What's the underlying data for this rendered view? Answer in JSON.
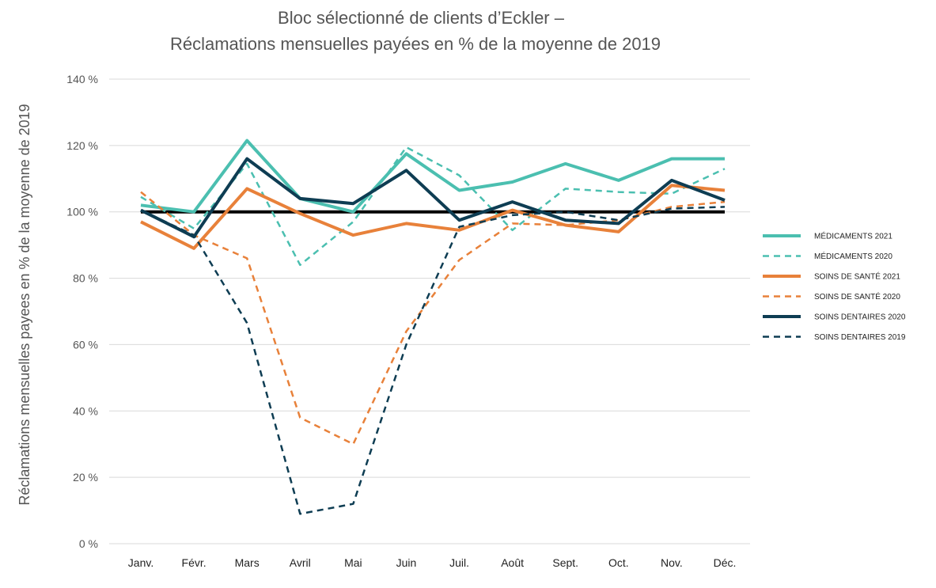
{
  "chart_data": {
    "type": "line",
    "title": [
      "Bloc sélectionné de clients d’Eckler –",
      "Réclamations mensuelles payées en % de la moyenne de 2019"
    ],
    "ylabel": "Réclamations mensuelles payees en % de la moyenne de 2019",
    "xlabel": "",
    "categories": [
      "Janv.",
      "Févr.",
      "Mars",
      "Avril",
      "Mai",
      "Juin",
      "Juil.",
      "Août",
      "Sept.",
      "Oct.",
      "Nov.",
      "Déc."
    ],
    "ylim": [
      0,
      140
    ],
    "yticks": [
      0,
      20,
      40,
      60,
      80,
      100,
      120,
      140
    ],
    "ytick_labels": [
      "0 %",
      "20 %",
      "40 %",
      "60 %",
      "80 %",
      "100 %",
      "120 %",
      "140 %"
    ],
    "grid": true,
    "legend_position": "right",
    "baseline": {
      "value": 100,
      "color": "#000000"
    },
    "series": [
      {
        "name": "MÉDICAMENTS 2021",
        "color": "#4bbfb0",
        "dashed": false,
        "values": [
          102,
          100,
          121.5,
          104,
          100,
          117.5,
          106.5,
          109,
          114.5,
          109.5,
          116,
          116
        ]
      },
      {
        "name": "MÉDICAMENTS 2020",
        "color": "#4bbfb0",
        "dashed": true,
        "values": [
          104.5,
          95,
          114.5,
          84,
          97,
          119.5,
          111,
          94.5,
          107,
          106,
          105.5,
          113
        ]
      },
      {
        "name": "SOINS DE SANTÉ 2021",
        "color": "#e8813a",
        "dashed": false,
        "values": [
          97,
          89,
          107,
          99.5,
          93,
          96.5,
          94.5,
          100.5,
          96,
          94,
          108,
          106.5
        ]
      },
      {
        "name": "SOINS DE SANTÉ 2020",
        "color": "#e8813a",
        "dashed": true,
        "values": [
          106,
          93,
          86,
          38,
          30,
          64,
          85.5,
          96.5,
          96,
          97.5,
          101.5,
          103
        ]
      },
      {
        "name": "SOINS DENTAIRES 2020",
        "color": "#0e3d53",
        "dashed": false,
        "values": [
          100.5,
          92.5,
          116,
          104,
          102.5,
          112.5,
          97.5,
          103,
          97.5,
          96.5,
          109.5,
          103.5
        ]
      },
      {
        "name": "SOINS DENTAIRES 2019",
        "color": "#0e3d53",
        "dashed": true,
        "values": [
          100.5,
          93,
          66.5,
          9,
          12,
          60,
          95.5,
          99,
          100,
          97.5,
          101,
          101.5
        ]
      }
    ]
  }
}
